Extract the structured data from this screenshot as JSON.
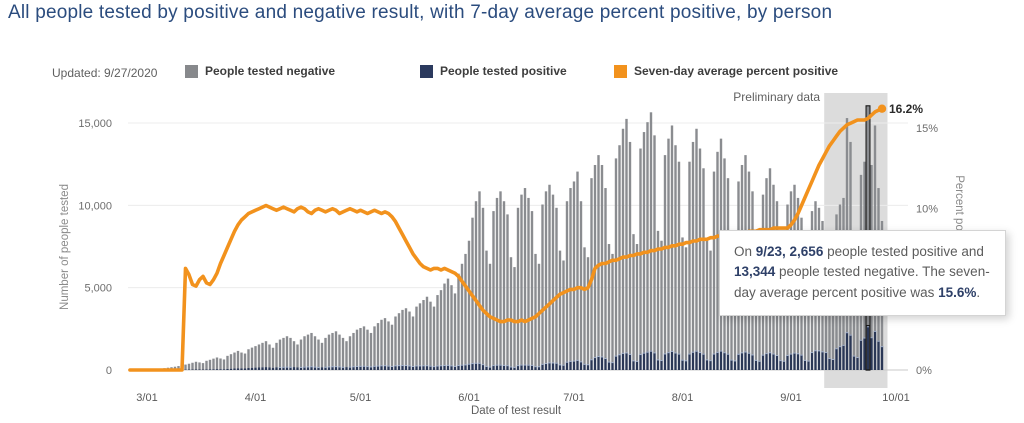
{
  "page": {
    "title": "All people tested by positive and negative result, with 7-day average percent positive, by person",
    "updated": "Updated: 9/27/2020"
  },
  "legend": {
    "items": [
      {
        "label": "People tested negative",
        "color": "#87898c"
      },
      {
        "label": "People tested positive",
        "color": "#2b3a5e"
      },
      {
        "label": "Seven-day average percent positive",
        "color": "#f2921d"
      }
    ]
  },
  "tooltip": {
    "segments": [
      {
        "text": "On ",
        "bold": false
      },
      {
        "text": "9/23, 2,656",
        "bold": true
      },
      {
        "text": " people tested positive and ",
        "bold": false
      },
      {
        "text": "13,344",
        "bold": true
      },
      {
        "text": " people tested negative. The seven-day average percent positive was ",
        "bold": false
      },
      {
        "text": "15.6%",
        "bold": true
      },
      {
        "text": ".",
        "bold": false
      }
    ]
  },
  "chart_data": {
    "type": "combo-bar-line",
    "title": "All people tested by positive and negative result, with 7-day average percent positive, by person",
    "start_date": "3/01",
    "end_date": "9/27",
    "x_axis": {
      "label": "Date of test result",
      "ticks": [
        "3/01",
        "4/01",
        "5/01",
        "6/01",
        "7/01",
        "8/01",
        "9/01",
        "10/01"
      ],
      "tick_days": [
        0,
        31,
        61,
        92,
        122,
        153,
        184,
        214
      ]
    },
    "y_axis_left": {
      "label": "Number of people tested",
      "ticks": [
        {
          "label": "15,000",
          "value": 15000
        },
        {
          "label": "10,000",
          "value": 10000
        },
        {
          "label": "5,000",
          "value": 5000
        },
        {
          "label": "0",
          "value": 0
        }
      ],
      "range": [
        0,
        16500
      ]
    },
    "y_axis_right": {
      "label": "Percent positive by person",
      "ticks": [
        {
          "label": "15%",
          "value": 15
        },
        {
          "label": "10%",
          "value": 10
        },
        {
          "label": "5%",
          "value": 5
        },
        {
          "label": "0%",
          "value": 0
        }
      ],
      "range": [
        0,
        16.5
      ]
    },
    "series": [
      {
        "name": "People tested negative",
        "type": "bar",
        "color": "#8a8c90"
      },
      {
        "name": "People tested positive",
        "type": "bar",
        "color": "#2a3756"
      },
      {
        "name": "Seven-day average percent positive",
        "type": "line",
        "color": "#f2921d"
      }
    ],
    "total_tested": [
      0,
      0,
      0,
      50,
      80,
      110,
      140,
      170,
      200,
      240,
      280,
      330,
      380,
      440,
      500,
      460,
      420,
      560,
      620,
      690,
      760,
      700,
      640,
      860,
      960,
      1060,
      1160,
      1060,
      1000,
      1260,
      1360,
      1450,
      1550,
      1650,
      1750,
      1550,
      1350,
      1650,
      1850,
      1950,
      2050,
      1950,
      1750,
      1550,
      1850,
      2050,
      2150,
      2250,
      2050,
      1850,
      1650,
      1950,
      2150,
      2250,
      2350,
      2150,
      1950,
      1750,
      2050,
      2250,
      2450,
      2550,
      2650,
      2450,
      2250,
      2650,
      2850,
      3050,
      3150,
      2950,
      2750,
      3250,
      3450,
      3650,
      3750,
      3550,
      3250,
      3850,
      4050,
      4250,
      4450,
      4150,
      3850,
      4550,
      4850,
      5250,
      5550,
      5150,
      4650,
      5850,
      6450,
      7050,
      7850,
      9250,
      10250,
      10850,
      9850,
      7250,
      6450,
      9650,
      10450,
      10850,
      10250,
      9450,
      6850,
      6250,
      9850,
      10650,
      11050,
      10450,
      9650,
      7050,
      6450,
      10050,
      10850,
      11250,
      10650,
      9850,
      7250,
      6650,
      10250,
      11050,
      11450,
      12050,
      10250,
      7450,
      6850,
      11650,
      12450,
      13050,
      12450,
      11050,
      7650,
      7050,
      12850,
      13650,
      14650,
      15250,
      13850,
      8250,
      7650,
      13450,
      14450,
      15050,
      15650,
      14250,
      8450,
      7850,
      13050,
      14050,
      14850,
      13650,
      12650,
      8050,
      7450,
      12650,
      13850,
      14650,
      13450,
      12250,
      7850,
      7250,
      12050,
      13250,
      14050,
      12850,
      11650,
      7450,
      6850,
      11450,
      12450,
      13050,
      12050,
      10850,
      7050,
      6450,
      10650,
      11650,
      12250,
      11250,
      10250,
      6650,
      6250,
      10050,
      10850,
      11250,
      10450,
      9250,
      5850,
      5250,
      9650,
      10250,
      9850,
      9050,
      8450,
      5450,
      4850,
      9450,
      10050,
      10450,
      15300,
      13850,
      5650,
      5050,
      11850,
      12650,
      16000,
      12450,
      14850,
      11050,
      9050
    ],
    "positive": [
      0,
      0,
      0,
      3,
      4,
      6,
      8,
      9,
      11,
      13,
      18,
      21,
      25,
      28,
      32,
      30,
      27,
      36,
      40,
      45,
      53,
      49,
      45,
      65,
      77,
      90,
      104,
      96,
      93,
      121,
      133,
      145,
      155,
      165,
      175,
      155,
      135,
      165,
      185,
      195,
      205,
      195,
      175,
      155,
      185,
      205,
      215,
      225,
      205,
      185,
      165,
      195,
      215,
      225,
      235,
      215,
      195,
      175,
      205,
      225,
      245,
      250,
      258,
      237,
      216,
      252,
      268,
      284,
      290,
      268,
      245,
      283,
      293,
      301,
      300,
      276,
      244,
      277,
      279,
      285,
      289,
      261,
      235,
      273,
      286,
      303,
      311,
      280,
      246,
      302,
      323,
      341,
      385,
      420,
      440,
      434,
      355,
      247,
      206,
      299,
      324,
      326,
      308,
      293,
      212,
      188,
      296,
      330,
      332,
      324,
      309,
      233,
      226,
      372,
      423,
      461,
      458,
      443,
      341,
      319,
      502,
      553,
      573,
      615,
      523,
      373,
      349,
      653,
      784,
      849,
      822,
      729,
      513,
      480,
      874,
      955,
      1040,
      1068,
      976,
      586,
      551,
      969,
      1054,
      1114,
      1173,
      1069,
      643,
      605,
      1004,
      1083,
      1158,
      1065,
      998,
      628,
      589,
      1000,
      1108,
      1172,
      1089,
      992,
      644,
      598,
      1000,
      1100,
      1180,
      1080,
      990,
      633,
      582,
      984,
      1071,
      1122,
      1048,
      944,
      613,
      561,
      932,
      1026,
      1078,
      1001,
      912,
      599,
      563,
      914,
      998,
      1058,
      1014,
      934,
      614,
      572,
      1090,
      1199,
      1192,
      1132,
      1090,
      727,
      669,
      1323,
      1447,
      1526,
      2295,
      2147,
      876,
      788,
      1837,
      1972,
      2656,
      1992,
      2376,
      1779,
      1448
    ],
    "pct_line": [
      0,
      0,
      0,
      0,
      0,
      0,
      0,
      0,
      0,
      0,
      0,
      6.3,
      5.9,
      5.3,
      5.2,
      5.6,
      5.8,
      5.4,
      5.3,
      5.6,
      6.0,
      6.6,
      7.1,
      7.6,
      8.1,
      8.6,
      9.0,
      9.3,
      9.5,
      9.7,
      9.8,
      9.9,
      10.0,
      10.1,
      10.2,
      10.1,
      10.0,
      9.9,
      10.0,
      10.1,
      10.0,
      9.9,
      9.8,
      10.0,
      10.1,
      10.0,
      9.8,
      9.7,
      9.9,
      10.0,
      9.9,
      9.8,
      9.9,
      10.0,
      9.9,
      9.7,
      9.8,
      9.9,
      10.0,
      9.9,
      9.8,
      9.9,
      9.8,
      9.7,
      9.8,
      9.9,
      9.8,
      9.7,
      9.8,
      9.7,
      9.5,
      9.2,
      8.8,
      8.4,
      8.0,
      7.6,
      7.2,
      6.9,
      6.6,
      6.4,
      6.3,
      6.2,
      6.3,
      6.3,
      6.2,
      6.3,
      6.2,
      6.1,
      6.0,
      5.8,
      5.5,
      5.2,
      4.9,
      4.6,
      4.3,
      4.0,
      3.7,
      3.5,
      3.3,
      3.2,
      3.1,
      3.0,
      3.0,
      3.1,
      3.1,
      3.0,
      3.0,
      3.1,
      3.0,
      3.1,
      3.2,
      3.3,
      3.5,
      3.7,
      3.9,
      4.1,
      4.3,
      4.5,
      4.7,
      4.8,
      4.9,
      5.0,
      5.0,
      5.1,
      5.1,
      5.0,
      5.1,
      5.6,
      6.3,
      6.5,
      6.6,
      6.6,
      6.7,
      6.8,
      6.8,
      6.9,
      7.0,
      7.0,
      7.1,
      7.1,
      7.2,
      7.2,
      7.3,
      7.3,
      7.4,
      7.4,
      7.5,
      7.5,
      7.6,
      7.6,
      7.7,
      7.7,
      7.8,
      7.8,
      7.9,
      7.9,
      8.0,
      8.0,
      8.1,
      8.1,
      8.1,
      8.2,
      8.2,
      8.3,
      8.3,
      8.3,
      8.4,
      8.4,
      8.4,
      8.5,
      8.5,
      8.5,
      8.6,
      8.6,
      8.6,
      8.7,
      8.7,
      8.7,
      8.7,
      8.8,
      8.8,
      8.8,
      8.8,
      8.8,
      9.0,
      9.3,
      9.7,
      10.2,
      10.7,
      11.2,
      11.7,
      12.2,
      12.7,
      13.1,
      13.5,
      13.9,
      14.2,
      14.5,
      14.8,
      15.0,
      15.2,
      15.3,
      15.4,
      15.5,
      15.5,
      15.5,
      15.6,
      15.8,
      16.0,
      16.1,
      16.2
    ],
    "preliminary": {
      "label": "Preliminary data",
      "start_day": 194,
      "band_color": "#dcdcdc"
    },
    "selected_day_index": 206,
    "selected_point": {
      "date": "9/23",
      "positive": "2,656",
      "negative": "13,344",
      "seven_day_avg": "15.6%"
    },
    "endpoint_label": "16.2%",
    "grid": true,
    "legend_position": "top"
  },
  "colors": {
    "title": "#2b4c7e",
    "gridline": "#ececec",
    "baseline": "#c9c9c9",
    "axis_text": "#6e6e6e",
    "tick_text": "#595959",
    "bar_negative": "#8a8c90",
    "bar_positive": "#2a3756",
    "bar_positive_cap": "#a2b1cc",
    "line": "#f2921d",
    "selection_outline": "#1a1a1a"
  }
}
